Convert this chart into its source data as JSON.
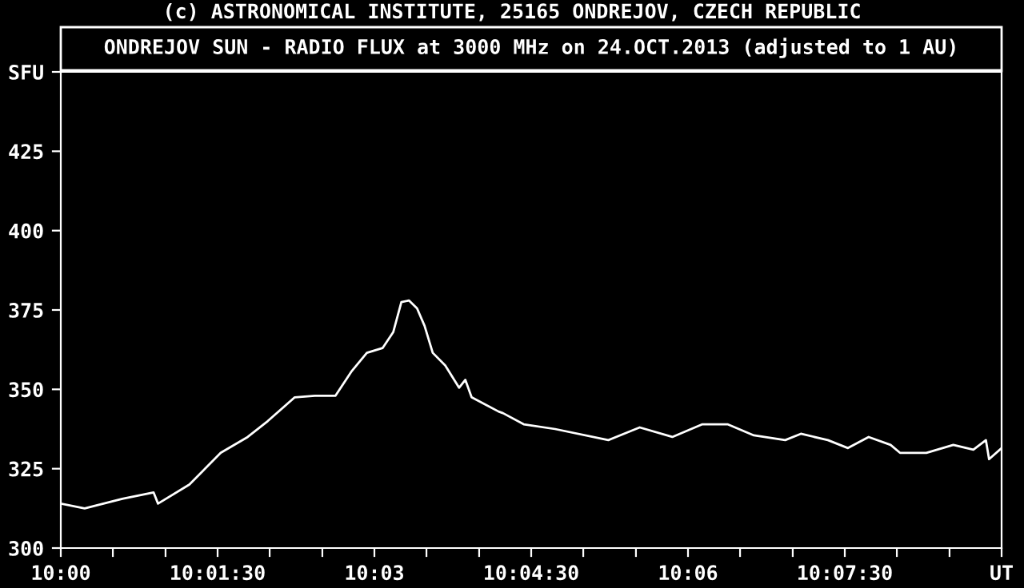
{
  "chart_data": {
    "type": "line",
    "title": "ONDREJOV SUN - RADIO FLUX at 3000 MHz on 24.OCT.2013 (adjusted to 1 AU)",
    "annotations": [
      "(c) ASTRONOMICAL INSTITUTE, 25165 ONDREJOV, CZECH REPUBLIC"
    ],
    "series": [
      {
        "color": "#ffffff",
        "x": [
          10.0,
          10.0038,
          10.0098,
          10.0148,
          10.0155,
          10.0205,
          10.0255,
          10.0298,
          10.033,
          10.0373,
          10.0405,
          10.0438,
          10.0463,
          10.0488,
          10.0513,
          10.053,
          10.0543,
          10.0555,
          10.0568,
          10.058,
          10.0593,
          10.0613,
          10.0635,
          10.0645,
          10.0655,
          10.0698,
          10.0705,
          10.0738,
          10.0788,
          10.0873,
          10.0923,
          10.0975,
          10.1023,
          10.1063,
          10.1105,
          10.1155,
          10.118,
          10.1223,
          10.1255,
          10.1288,
          10.1323,
          10.1338,
          10.138,
          10.1423,
          10.1455,
          10.1475,
          10.148,
          10.15
        ],
        "values": [
          314,
          312.5,
          315.5,
          317.5,
          314,
          320,
          330,
          335,
          340,
          347.5,
          348,
          348,
          355.5,
          361.5,
          363,
          368,
          377.5,
          378,
          375.5,
          370,
          361.5,
          357.5,
          350.5,
          353,
          347.5,
          343,
          342.5,
          339,
          337.5,
          334,
          338,
          335,
          339,
          339,
          335.5,
          334,
          336,
          334,
          331.5,
          335,
          332.5,
          330,
          330,
          332.5,
          331,
          334,
          328,
          331.5
        ]
      }
    ],
    "xlim": [
      10.0,
      10.15
    ],
    "xticks": [
      {
        "value": 10.0,
        "label": "10:00"
      },
      {
        "value": 10.0083,
        "label": null
      },
      {
        "value": 10.0167,
        "label": null
      },
      {
        "value": 10.025,
        "label": "10:01:30"
      },
      {
        "value": 10.0333,
        "label": null
      },
      {
        "value": 10.0417,
        "label": null
      },
      {
        "value": 10.05,
        "label": "10:03"
      },
      {
        "value": 10.0583,
        "label": null
      },
      {
        "value": 10.0667,
        "label": null
      },
      {
        "value": 10.075,
        "label": "10:04:30"
      },
      {
        "value": 10.0833,
        "label": null
      },
      {
        "value": 10.0917,
        "label": null
      },
      {
        "value": 10.1,
        "label": "10:06"
      },
      {
        "value": 10.1083,
        "label": null
      },
      {
        "value": 10.1167,
        "label": null
      },
      {
        "value": 10.125,
        "label": "10:07:30"
      },
      {
        "value": 10.1333,
        "label": null
      },
      {
        "value": 10.1417,
        "label": null
      },
      {
        "value": 10.15,
        "label": "UT"
      }
    ],
    "ylim": [
      300,
      450
    ],
    "yticks": [
      300,
      325,
      350,
      375,
      400,
      425,
      {
        "value": 450,
        "label": "SFU"
      }
    ],
    "grid": false,
    "legend": false,
    "marker": "none",
    "line_style": "solid"
  }
}
